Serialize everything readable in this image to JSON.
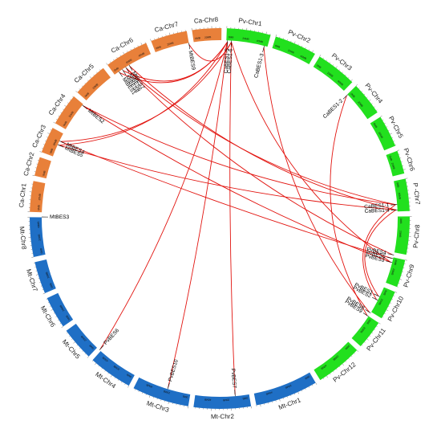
{
  "colors": {
    "Mt": "#1f6fc5",
    "Ca": "#e8803a",
    "Pv": "#22e01e",
    "link": "#e2140f",
    "leader": "#000000"
  },
  "tick_labels": [
    "0MB",
    "20MB",
    "40MB"
  ],
  "chromosomes": [
    {
      "id": "Ca-Chr1",
      "label": "Ca-Chr1",
      "species": "Ca",
      "span": 10.5,
      "label_radial": "normal"
    },
    {
      "id": "Ca-Chr2",
      "label": "Ca-Chr2",
      "species": "Ca",
      "span": 6.5,
      "label_radial": "normal"
    },
    {
      "id": "Ca-Chr3",
      "label": "Ca-Chr3",
      "species": "Ca",
      "span": 9.0,
      "label_radial": "normal"
    },
    {
      "id": "Ca-Chr4",
      "label": "Ca-Chr4",
      "species": "Ca",
      "span": 11.0,
      "label_radial": "normal"
    },
    {
      "id": "Ca-Chr5",
      "label": "Ca-Chr5",
      "species": "Ca",
      "span": 12.0,
      "label_radial": "normal"
    },
    {
      "id": "Ca-Chr6",
      "label": "Ca-Chr6",
      "species": "Ca",
      "span": 15.0,
      "label_radial": "normal"
    },
    {
      "id": "Ca-Chr7",
      "label": "Ca-Chr7",
      "species": "Ca",
      "span": 12.5,
      "label_radial": "normal"
    },
    {
      "id": "Ca-Chr8",
      "label": "Ca-Chr8",
      "species": "Ca",
      "span": 10.0,
      "label_radial": "normal"
    },
    {
      "id": "Pv-Chr1",
      "label": "Pv-Chr1",
      "species": "Pv",
      "span": 15.0,
      "label_radial": "normal"
    },
    {
      "id": "Pv-Chr2",
      "label": "Pv-Chr2",
      "species": "Pv",
      "span": 14.5,
      "label_radial": "normal"
    },
    {
      "id": "Pv-Chr3",
      "label": "Pv-Chr3",
      "species": "Pv",
      "span": 14.0,
      "label_radial": "normal"
    },
    {
      "id": "Pv-Chr4",
      "label": "Pv-Chr4",
      "species": "Pv",
      "span": 11.5,
      "label_radial": "normal"
    },
    {
      "id": "Pv-Chr5",
      "label": "Pv-Chr5",
      "species": "Pv",
      "span": 11.0,
      "label_radial": "normal"
    },
    {
      "id": "Pv-Chr6",
      "label": "Pv-Chr6",
      "species": "Pv",
      "span": 8.0,
      "label_radial": "normal"
    },
    {
      "id": "Pv-Chr7",
      "label": "P  -Chr7",
      "species": "Pv",
      "span": 11.0,
      "label_radial": "normal"
    },
    {
      "id": "Pv-Chr8",
      "label": "Pv-Chr8",
      "species": "Pv",
      "span": 13.0,
      "label_radial": "normal"
    },
    {
      "id": "Pv-Chr9",
      "label": "Pv-Chr9",
      "species": "Pv",
      "span": 9.5,
      "label_radial": "normal"
    },
    {
      "id": "Pv-Chr10",
      "label": "Pv-Chr10",
      "species": "Pv",
      "span": 10.0,
      "label_radial": "normal"
    },
    {
      "id": "Pv-Chr11",
      "label": "Pv-Chr11",
      "species": "Pv",
      "span": 10.0,
      "label_radial": "normal"
    },
    {
      "id": "Pv-Chr12",
      "label": "Pv-Chr12",
      "species": "Pv",
      "span": 16.0,
      "label_radial": "normal"
    },
    {
      "id": "Mt-Chr1",
      "label": "Mt-Chr1",
      "species": "Mt",
      "span": 21.5,
      "label_radial": "normal"
    },
    {
      "id": "Mt-Chr2",
      "label": "Mt-Chr2",
      "species": "Mt",
      "span": 19.5,
      "label_radial": "normal"
    },
    {
      "id": "Mt-Chr3",
      "label": "Mt-Chr3",
      "species": "Mt",
      "span": 19.5,
      "label_radial": "normal"
    },
    {
      "id": "Mt-Chr4",
      "label": "Mt-Chr4",
      "species": "Mt",
      "span": 15.0,
      "label_radial": "normal"
    },
    {
      "id": "Mt-Chr5",
      "label": "Mt-Chr5",
      "species": "Mt",
      "span": 11.5,
      "label_radial": "normal"
    },
    {
      "id": "Mt-Chr6",
      "label": "Mt-Chr6",
      "species": "Mt",
      "span": 11.0,
      "label_radial": "normal"
    },
    {
      "id": "Mt-Chr7",
      "label": "Mt-Chr7",
      "species": "Mt",
      "span": 11.0,
      "label_radial": "normal"
    },
    {
      "id": "Mt-Chr8",
      "label": "Mt-Chr8",
      "species": "Mt",
      "span": 13.5,
      "label_radial": "normal"
    }
  ],
  "genes": [
    {
      "id": "CaBES1-5",
      "label": "CaBES1-5",
      "pos": 2.5
    },
    {
      "id": "CaBES1-6",
      "label": "CaBES1-6",
      "pos": 3.8
    },
    {
      "id": "CaBES1-3",
      "label": "CaBES1-3",
      "pos": 14.5
    },
    {
      "id": "CaBES1-2",
      "label": "CaBES1-2",
      "pos": 46.0
    },
    {
      "id": "CaBES1-1",
      "label": "CaBES1-1",
      "pos": 85.5
    },
    {
      "id": "CaBES1-4",
      "label": "CaBES1-4",
      "pos": 87.2
    },
    {
      "id": "PvBES4",
      "label": "PvBES4",
      "pos": 101.8
    },
    {
      "id": "PvBES5",
      "label": "PvBES5",
      "pos": 103.0
    },
    {
      "id": "PvBES3",
      "label": "PvBES3",
      "pos": 104.3
    },
    {
      "id": "PvBES1",
      "label": "PvBES1",
      "pos": 116.0
    },
    {
      "id": "PvBES2",
      "label": "PvBES2",
      "pos": 117.3
    },
    {
      "id": "PvBES8",
      "label": "PvBES8",
      "pos": 122.0
    },
    {
      "id": "PvBES9",
      "label": "PvBES9",
      "pos": 123.3
    },
    {
      "id": "PvBES7",
      "label": "PvBES7",
      "pos": 175.0
    },
    {
      "id": "PvBES10",
      "label": "PvBES10",
      "pos": 197.0
    },
    {
      "id": "PvBES6",
      "label": "PvBES6",
      "pos": 222.5
    },
    {
      "id": "MtBES3",
      "label": "MtBES3",
      "pos": 270.5
    },
    {
      "id": "MtBES5",
      "label": "MtBES5",
      "pos": 294.5
    },
    {
      "id": "MtBES4",
      "label": "MtBES4",
      "pos": 295.8
    },
    {
      "id": "MtBES2",
      "label": "MtBES2",
      "pos": 309.5
    },
    {
      "id": "MtBES1",
      "label": "MtBES1",
      "pos": 325.5
    },
    {
      "id": "MtBES8",
      "label": "MtBES8",
      "pos": 326.8
    },
    {
      "id": "MtBES6",
      "label": "MtBES6",
      "pos": 328.1
    },
    {
      "id": "MtBES7",
      "label": "MtBES7",
      "pos": 329.4
    },
    {
      "id": "MtBES9",
      "label": "MtBES9",
      "pos": 350.0
    }
  ],
  "links": [
    {
      "from": "CaBES1-5",
      "to": "MtBES1"
    },
    {
      "from": "CaBES1-5",
      "to": "MtBES8"
    },
    {
      "from": "CaBES1-5",
      "to": "MtBES5"
    },
    {
      "from": "CaBES1-5",
      "to": "PvBES10"
    },
    {
      "from": "CaBES1-6",
      "to": "MtBES9"
    },
    {
      "from": "CaBES1-6",
      "to": "MtBES4"
    },
    {
      "from": "CaBES1-6",
      "to": "PvBES7"
    },
    {
      "from": "CaBES1-6",
      "to": "PvBES3"
    },
    {
      "from": "CaBES1-5",
      "to": "PvBES6"
    },
    {
      "from": "CaBES1-3",
      "to": "PvBES8"
    },
    {
      "from": "CaBES1-2",
      "to": "PvBES9"
    },
    {
      "from": "CaBES1-1",
      "to": "MtBES6"
    },
    {
      "from": "CaBES1-1",
      "to": "MtBES2"
    },
    {
      "from": "CaBES1-4",
      "to": "MtBES7"
    },
    {
      "from": "CaBES1-4",
      "to": "MtBES5"
    },
    {
      "from": "CaBES1-1",
      "to": "PvBES2"
    },
    {
      "from": "CaBES1-4",
      "to": "PvBES1"
    },
    {
      "from": "PvBES4",
      "to": "MtBES6"
    },
    {
      "from": "PvBES5",
      "to": "MtBES4"
    },
    {
      "from": "PvBES3",
      "to": "MtBES2"
    }
  ]
}
